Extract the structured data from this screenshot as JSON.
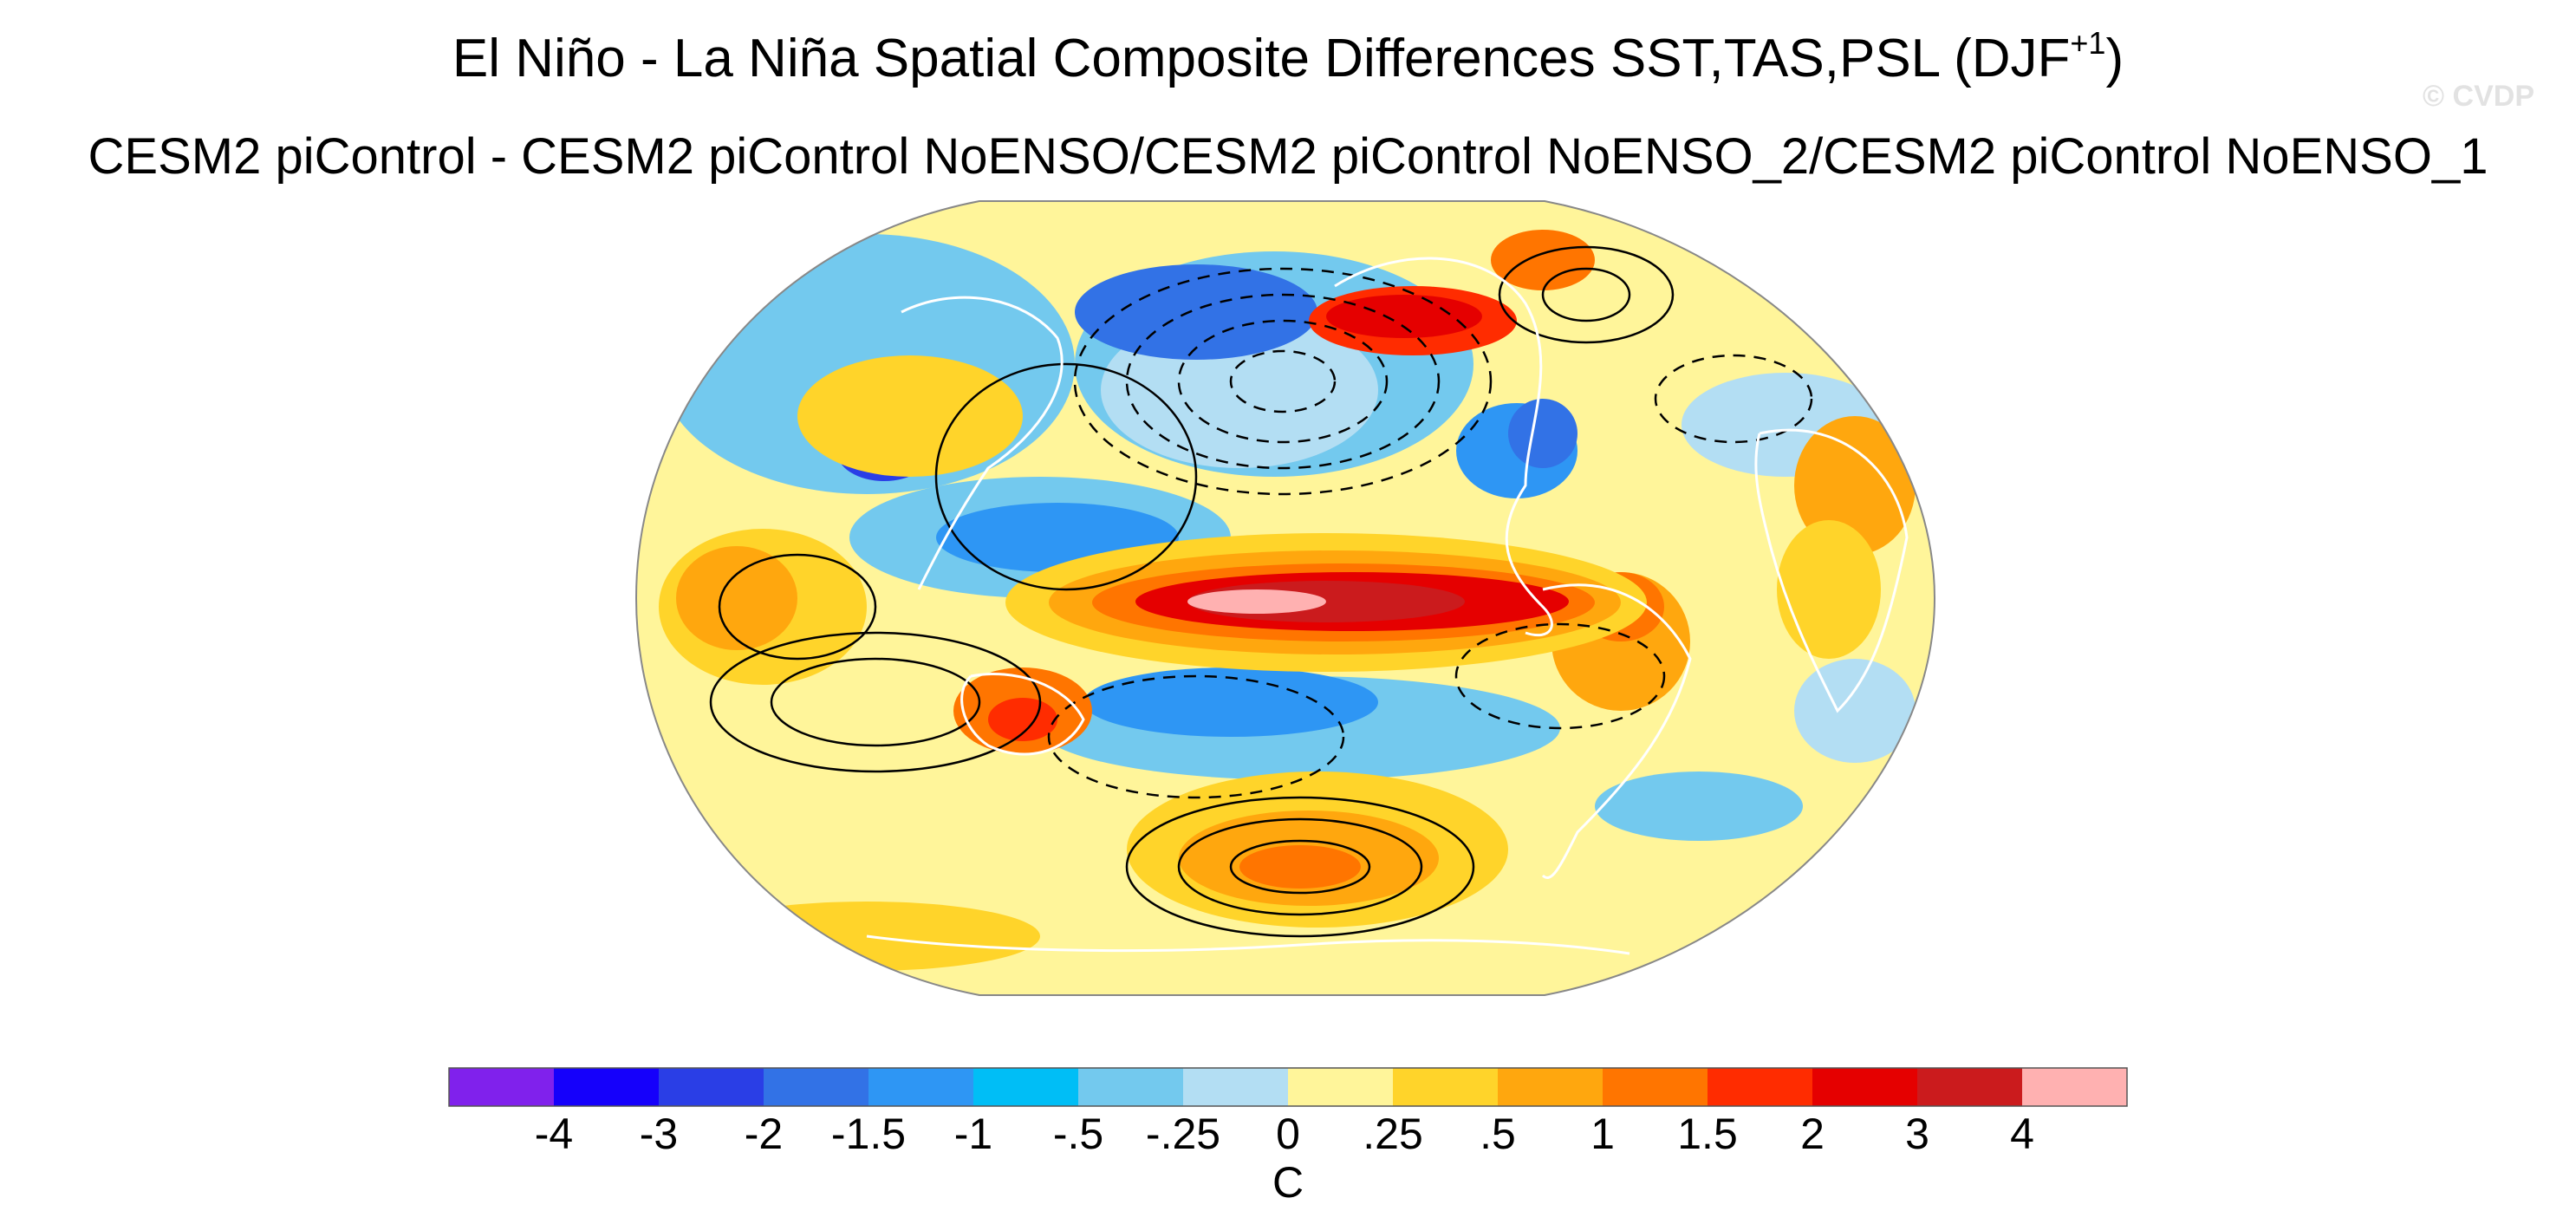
{
  "title": {
    "main": "El Niño - La Niña Spatial Composite Differences SST,TAS,PSL (DJF",
    "superscript": "+1",
    "close": ")"
  },
  "subtitle": "CESM2 piControl - CESM2 piControl NoENSO/CESM2 piControl NoENSO_2/CESM2 piControl NoENSO_1",
  "watermark": "© CVDP",
  "colorbar": {
    "colors": [
      "#8021ec",
      "#1500fb",
      "#2a3ee6",
      "#3272e6",
      "#2e96f4",
      "#00bef6",
      "#73c9ee",
      "#b3def3",
      "#fff59a",
      "#ffd42a",
      "#ffa70e",
      "#ff7500",
      "#ff2c00",
      "#e50000",
      "#cb1b1d",
      "#ffb1b1"
    ],
    "labels": [
      "-4",
      "-3",
      "-2",
      "-1.5",
      "-1",
      "-.5",
      "-.25",
      "0",
      ".25",
      ".5",
      "1",
      "1.5",
      "2",
      "3",
      "4"
    ],
    "units": "C"
  }
}
